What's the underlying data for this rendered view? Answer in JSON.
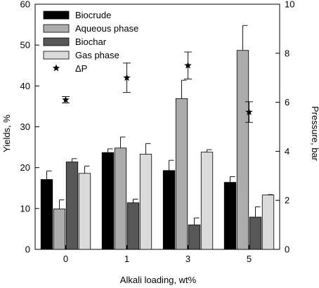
{
  "chart_data": {
    "type": "bar",
    "categories": [
      "0",
      "1",
      "3",
      "5"
    ],
    "xlabel": "Alkali loading, wt%",
    "ylabel": "Yields, %",
    "y2label": "Pressure, bar",
    "ylim": [
      0,
      60
    ],
    "y2lim": [
      0,
      10
    ],
    "yticks": [
      0,
      10,
      20,
      30,
      40,
      50,
      60
    ],
    "y2ticks": [
      0,
      2,
      4,
      6,
      8,
      10
    ],
    "grid": false,
    "legend_position": "top-left",
    "series": [
      {
        "name": "Biocrude",
        "color": "#000000",
        "values": [
          17.1,
          23.7,
          19.3,
          16.4
        ],
        "errors": [
          2.1,
          0.9,
          2.5,
          1.4
        ]
      },
      {
        "name": "Aqueous phase",
        "color": "#acacac",
        "values": [
          9.9,
          24.8,
          36.9,
          48.7
        ],
        "errors": [
          2.2,
          2.7,
          4.5,
          6.1
        ]
      },
      {
        "name": "Biochar",
        "color": "#575757",
        "values": [
          21.4,
          11.4,
          6.0,
          7.9
        ],
        "errors": [
          0.8,
          0.9,
          1.7,
          2.5
        ]
      },
      {
        "name": "Gas phase",
        "color": "#dadada",
        "values": [
          18.6,
          23.3,
          23.8,
          13.3
        ],
        "errors": [
          1.8,
          2.6,
          0.6,
          0.1
        ]
      }
    ],
    "pressure_series": {
      "name": "ΔP",
      "marker": "star",
      "values": [
        6.1,
        7.0,
        7.5,
        5.6
      ],
      "errors": [
        0.13,
        0.6,
        0.55,
        0.42
      ]
    }
  }
}
